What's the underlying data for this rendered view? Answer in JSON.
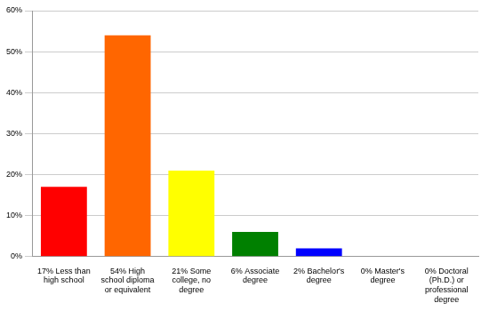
{
  "chart_data": {
    "type": "bar",
    "categories": [
      "17% Less than high school",
      "54% High school diploma or equivalent",
      "21% Some college, no degree",
      "6% Associate degree",
      "2% Bachelor's degree",
      "0% Master's degree",
      "0% Doctoral (Ph.D.) or professional degree"
    ],
    "values": [
      17,
      54,
      21,
      6,
      2,
      0,
      0
    ],
    "colors": [
      "#ff0000",
      "#ff6600",
      "#ffff00",
      "#008000",
      "#0000ff",
      "#9900ff",
      "#ff00ff"
    ],
    "ylim": [
      0,
      60
    ],
    "yticks": [
      {
        "value": 0,
        "label": "0%"
      },
      {
        "value": 10,
        "label": "10%"
      },
      {
        "value": 20,
        "label": "20%"
      },
      {
        "value": 30,
        "label": "30%"
      },
      {
        "value": 40,
        "label": "40%"
      },
      {
        "value": 50,
        "label": "50%"
      },
      {
        "value": 60,
        "label": "60%"
      }
    ],
    "grid": true
  }
}
